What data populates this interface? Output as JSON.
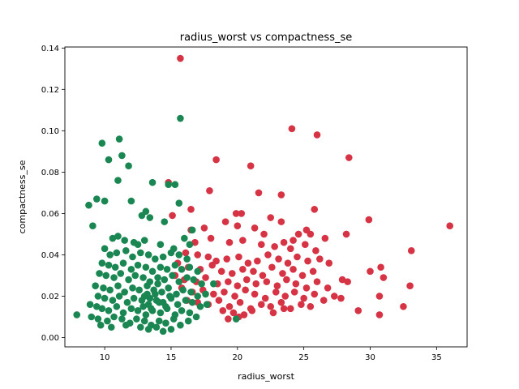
{
  "chart_data": {
    "type": "scatter",
    "title": "radius_worst vs compactness_se",
    "xlabel": "radius_worst",
    "ylabel": "compactness_se",
    "xlim": [
      7.0,
      37.3
    ],
    "ylim": [
      -0.0045,
      0.1405
    ],
    "xticks": [
      10,
      15,
      20,
      25,
      30,
      35
    ],
    "xtick_labels": [
      "10",
      "15",
      "20",
      "25",
      "30",
      "35"
    ],
    "yticks": [
      0.0,
      0.02,
      0.04,
      0.06,
      0.08,
      0.1,
      0.12,
      0.14
    ],
    "ytick_labels": [
      "0.00",
      "0.02",
      "0.04",
      "0.06",
      "0.08",
      "0.10",
      "0.12",
      "0.14"
    ],
    "grid": false,
    "legend": "none",
    "series": [
      {
        "color": "#d63344",
        "points": [
          [
            15.7,
            0.135
          ],
          [
            24.1,
            0.101
          ],
          [
            26.0,
            0.098
          ],
          [
            28.4,
            0.087
          ],
          [
            18.4,
            0.086
          ],
          [
            21.0,
            0.083
          ],
          [
            17.9,
            0.071
          ],
          [
            21.6,
            0.07
          ],
          [
            23.3,
            0.069
          ],
          [
            16.5,
            0.062
          ],
          [
            25.8,
            0.062
          ],
          [
            19.9,
            0.06
          ],
          [
            20.3,
            0.06
          ],
          [
            22.5,
            0.058
          ],
          [
            23.3,
            0.056
          ],
          [
            29.9,
            0.057
          ],
          [
            36.0,
            0.054
          ],
          [
            14.8,
            0.075
          ],
          [
            15.1,
            0.059
          ],
          [
            16.5,
            0.052
          ],
          [
            17.5,
            0.053
          ],
          [
            19.1,
            0.056
          ],
          [
            20.0,
            0.054
          ],
          [
            21.3,
            0.053
          ],
          [
            22.0,
            0.05
          ],
          [
            24.6,
            0.05
          ],
          [
            24.2,
            0.047
          ],
          [
            25.2,
            0.052
          ],
          [
            25.5,
            0.05
          ],
          [
            26.6,
            0.048
          ],
          [
            28.2,
            0.05
          ],
          [
            16.8,
            0.046
          ],
          [
            18.0,
            0.048
          ],
          [
            19.4,
            0.046
          ],
          [
            20.4,
            0.047
          ],
          [
            21.8,
            0.045
          ],
          [
            22.8,
            0.044
          ],
          [
            23.5,
            0.046
          ],
          [
            24.0,
            0.043
          ],
          [
            25.1,
            0.045
          ],
          [
            25.9,
            0.042
          ],
          [
            33.1,
            0.042
          ],
          [
            16.1,
            0.041
          ],
          [
            17.0,
            0.04
          ],
          [
            17.8,
            0.039
          ],
          [
            18.4,
            0.037
          ],
          [
            19.2,
            0.038
          ],
          [
            20.1,
            0.039
          ],
          [
            20.8,
            0.036
          ],
          [
            21.5,
            0.037
          ],
          [
            22.3,
            0.04
          ],
          [
            23.1,
            0.038
          ],
          [
            23.8,
            0.036
          ],
          [
            24.5,
            0.039
          ],
          [
            25.3,
            0.037
          ],
          [
            26.2,
            0.038
          ],
          [
            26.9,
            0.036
          ],
          [
            15.5,
            0.036
          ],
          [
            16.3,
            0.034
          ],
          [
            17.2,
            0.033
          ],
          [
            18.1,
            0.035
          ],
          [
            18.8,
            0.032
          ],
          [
            19.6,
            0.031
          ],
          [
            20.4,
            0.033
          ],
          [
            21.2,
            0.032
          ],
          [
            21.9,
            0.03
          ],
          [
            22.6,
            0.034
          ],
          [
            23.4,
            0.031
          ],
          [
            24.2,
            0.033
          ],
          [
            24.9,
            0.03
          ],
          [
            25.7,
            0.032
          ],
          [
            27.9,
            0.028
          ],
          [
            30.0,
            0.032
          ],
          [
            30.8,
            0.034
          ],
          [
            31.0,
            0.029
          ],
          [
            15.3,
            0.03
          ],
          [
            16.0,
            0.028
          ],
          [
            16.9,
            0.027
          ],
          [
            17.6,
            0.029
          ],
          [
            18.5,
            0.026
          ],
          [
            19.3,
            0.027
          ],
          [
            20.0,
            0.025
          ],
          [
            20.7,
            0.028
          ],
          [
            21.4,
            0.026
          ],
          [
            22.2,
            0.027
          ],
          [
            23.0,
            0.025
          ],
          [
            23.7,
            0.028
          ],
          [
            24.4,
            0.026
          ],
          [
            25.2,
            0.024
          ],
          [
            26.0,
            0.027
          ],
          [
            26.8,
            0.024
          ],
          [
            28.3,
            0.027
          ],
          [
            33.0,
            0.025
          ],
          [
            15.8,
            0.024
          ],
          [
            16.6,
            0.022
          ],
          [
            17.4,
            0.023
          ],
          [
            18.2,
            0.021
          ],
          [
            19.0,
            0.022
          ],
          [
            19.8,
            0.02
          ],
          [
            20.6,
            0.023
          ],
          [
            21.3,
            0.021
          ],
          [
            22.1,
            0.019
          ],
          [
            22.9,
            0.022
          ],
          [
            23.6,
            0.02
          ],
          [
            24.3,
            0.022
          ],
          [
            25.0,
            0.019
          ],
          [
            25.8,
            0.021
          ],
          [
            26.5,
            0.018
          ],
          [
            27.3,
            0.02
          ],
          [
            27.8,
            0.019
          ],
          [
            30.7,
            0.02
          ],
          [
            16.2,
            0.018
          ],
          [
            17.0,
            0.017
          ],
          [
            17.8,
            0.016
          ],
          [
            18.6,
            0.018
          ],
          [
            19.4,
            0.015
          ],
          [
            20.2,
            0.017
          ],
          [
            21.0,
            0.014
          ],
          [
            21.8,
            0.016
          ],
          [
            22.5,
            0.015
          ],
          [
            23.3,
            0.017
          ],
          [
            24.0,
            0.014
          ],
          [
            24.8,
            0.016
          ],
          [
            25.5,
            0.015
          ],
          [
            18.9,
            0.013
          ],
          [
            19.7,
            0.012
          ],
          [
            20.5,
            0.011
          ],
          [
            21.1,
            0.013
          ],
          [
            22.7,
            0.012
          ],
          [
            23.5,
            0.014
          ],
          [
            29.1,
            0.013
          ],
          [
            30.7,
            0.011
          ],
          [
            32.5,
            0.015
          ],
          [
            19.3,
            0.009
          ],
          [
            20.1,
            0.01
          ]
        ]
      },
      {
        "color": "#1a8753",
        "points": [
          [
            15.7,
            0.106
          ],
          [
            9.8,
            0.094
          ],
          [
            11.1,
            0.096
          ],
          [
            11.3,
            0.088
          ],
          [
            10.3,
            0.086
          ],
          [
            11.8,
            0.083
          ],
          [
            11.0,
            0.076
          ],
          [
            14.8,
            0.074
          ],
          [
            15.3,
            0.074
          ],
          [
            13.6,
            0.075
          ],
          [
            9.4,
            0.067
          ],
          [
            10.0,
            0.066
          ],
          [
            8.8,
            0.064
          ],
          [
            12.0,
            0.066
          ],
          [
            15.6,
            0.065
          ],
          [
            13.1,
            0.061
          ],
          [
            13.4,
            0.058
          ],
          [
            12.8,
            0.059
          ],
          [
            14.5,
            0.056
          ],
          [
            9.1,
            0.054
          ],
          [
            16.6,
            0.052
          ],
          [
            16.0,
            0.048
          ],
          [
            10.6,
            0.048
          ],
          [
            11.0,
            0.049
          ],
          [
            11.5,
            0.047
          ],
          [
            12.2,
            0.046
          ],
          [
            12.5,
            0.045
          ],
          [
            13.0,
            0.047
          ],
          [
            14.2,
            0.045
          ],
          [
            15.2,
            0.043
          ],
          [
            16.4,
            0.045
          ],
          [
            10.0,
            0.043
          ],
          [
            10.4,
            0.04
          ],
          [
            10.9,
            0.041
          ],
          [
            11.6,
            0.042
          ],
          [
            12.1,
            0.039
          ],
          [
            12.7,
            0.041
          ],
          [
            13.3,
            0.04
          ],
          [
            13.8,
            0.038
          ],
          [
            14.4,
            0.039
          ],
          [
            15.0,
            0.041
          ],
          [
            15.6,
            0.04
          ],
          [
            16.2,
            0.038
          ],
          [
            9.8,
            0.036
          ],
          [
            10.3,
            0.035
          ],
          [
            10.8,
            0.034
          ],
          [
            11.4,
            0.036
          ],
          [
            12.0,
            0.033
          ],
          [
            12.5,
            0.035
          ],
          [
            13.1,
            0.034
          ],
          [
            13.6,
            0.032
          ],
          [
            14.2,
            0.034
          ],
          [
            14.7,
            0.033
          ],
          [
            15.3,
            0.035
          ],
          [
            15.8,
            0.033
          ],
          [
            16.4,
            0.034
          ],
          [
            17.0,
            0.032
          ],
          [
            9.6,
            0.031
          ],
          [
            10.1,
            0.03
          ],
          [
            10.7,
            0.029
          ],
          [
            11.2,
            0.031
          ],
          [
            11.8,
            0.028
          ],
          [
            12.3,
            0.03
          ],
          [
            12.9,
            0.029
          ],
          [
            13.4,
            0.027
          ],
          [
            14.0,
            0.029
          ],
          [
            14.5,
            0.028
          ],
          [
            15.1,
            0.03
          ],
          [
            15.6,
            0.027
          ],
          [
            16.2,
            0.029
          ],
          [
            16.7,
            0.028
          ],
          [
            17.3,
            0.026
          ],
          [
            18.2,
            0.026
          ],
          [
            9.3,
            0.025
          ],
          [
            9.9,
            0.024
          ],
          [
            10.4,
            0.023
          ],
          [
            11.0,
            0.025
          ],
          [
            11.5,
            0.022
          ],
          [
            12.1,
            0.024
          ],
          [
            12.6,
            0.023
          ],
          [
            13.2,
            0.021
          ],
          [
            13.7,
            0.023
          ],
          [
            14.3,
            0.022
          ],
          [
            14.8,
            0.024
          ],
          [
            15.4,
            0.021
          ],
          [
            15.9,
            0.023
          ],
          [
            16.5,
            0.022
          ],
          [
            17.0,
            0.02
          ],
          [
            17.6,
            0.021
          ],
          [
            9.5,
            0.02
          ],
          [
            10.0,
            0.019
          ],
          [
            10.6,
            0.018
          ],
          [
            11.1,
            0.02
          ],
          [
            11.7,
            0.017
          ],
          [
            12.2,
            0.019
          ],
          [
            12.8,
            0.018
          ],
          [
            13.3,
            0.016
          ],
          [
            13.9,
            0.018
          ],
          [
            14.4,
            0.017
          ],
          [
            15.0,
            0.019
          ],
          [
            15.5,
            0.016
          ],
          [
            16.1,
            0.018
          ],
          [
            16.6,
            0.017
          ],
          [
            17.2,
            0.015
          ],
          [
            17.7,
            0.016
          ],
          [
            8.9,
            0.016
          ],
          [
            9.4,
            0.015
          ],
          [
            9.8,
            0.014
          ],
          [
            10.3,
            0.013
          ],
          [
            10.9,
            0.015
          ],
          [
            11.4,
            0.012
          ],
          [
            12.0,
            0.014
          ],
          [
            12.5,
            0.013
          ],
          [
            13.1,
            0.011
          ],
          [
            13.6,
            0.013
          ],
          [
            14.2,
            0.012
          ],
          [
            14.7,
            0.014
          ],
          [
            15.3,
            0.011
          ],
          [
            15.8,
            0.013
          ],
          [
            16.4,
            0.012
          ],
          [
            16.9,
            0.01
          ],
          [
            7.9,
            0.011
          ],
          [
            9.0,
            0.01
          ],
          [
            9.5,
            0.009
          ],
          [
            10.2,
            0.008
          ],
          [
            10.7,
            0.01
          ],
          [
            11.3,
            0.009
          ],
          [
            11.9,
            0.007
          ],
          [
            12.4,
            0.009
          ],
          [
            13.0,
            0.008
          ],
          [
            13.5,
            0.006
          ],
          [
            14.1,
            0.008
          ],
          [
            14.6,
            0.007
          ],
          [
            15.2,
            0.009
          ],
          [
            15.7,
            0.006
          ],
          [
            16.3,
            0.008
          ],
          [
            9.7,
            0.006
          ],
          [
            10.5,
            0.005
          ],
          [
            11.6,
            0.006
          ],
          [
            12.7,
            0.005
          ],
          [
            13.3,
            0.004
          ],
          [
            13.9,
            0.005
          ],
          [
            14.4,
            0.003
          ],
          [
            15.0,
            0.004
          ],
          [
            19.9,
            0.009
          ],
          [
            13.0,
            0.02
          ],
          [
            13.4,
            0.019
          ],
          [
            13.8,
            0.021
          ],
          [
            14.1,
            0.017
          ],
          [
            12.9,
            0.015
          ],
          [
            13.5,
            0.014
          ],
          [
            14.6,
            0.015
          ],
          [
            13.2,
            0.025
          ],
          [
            14.0,
            0.026
          ],
          [
            14.9,
            0.02
          ]
        ]
      }
    ]
  }
}
